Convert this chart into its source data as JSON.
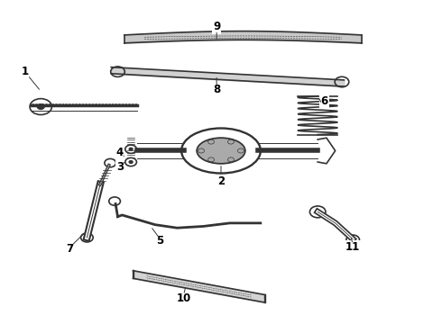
{
  "background_color": "#ffffff",
  "line_color": "#333333",
  "label_color": "#000000",
  "figsize": [
    4.9,
    3.6
  ],
  "dpi": 100
}
